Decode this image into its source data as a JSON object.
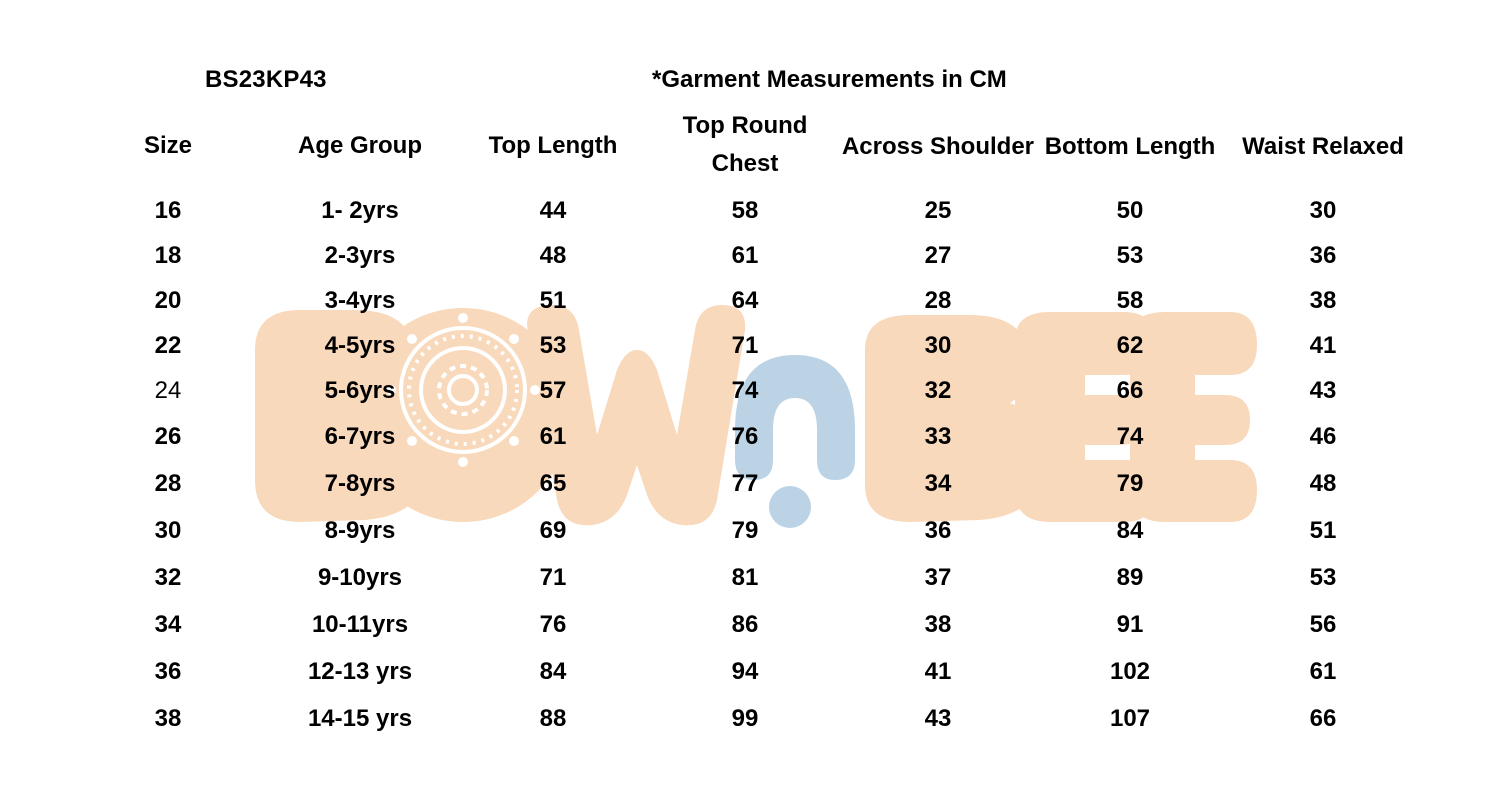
{
  "header": {
    "style_code": "BS23KP43",
    "note": "*Garment Measurements in CM"
  },
  "watermark": {
    "logo_text": "BOWnBEE",
    "colors": {
      "peach": "#F9D9BC",
      "blue": "#BCD3E6"
    }
  },
  "table": {
    "columns": [
      "Size",
      "Age Group",
      "Top Length",
      "Top Round\nChest",
      "Across Shoulder",
      "Bottom Length",
      "Waist Relaxed"
    ],
    "rows": [
      [
        "16",
        "1- 2yrs",
        "44",
        "58",
        "25",
        "50",
        "30"
      ],
      [
        "18",
        "2-3yrs",
        "48",
        "61",
        "27",
        "53",
        "36"
      ],
      [
        "20",
        "3-4yrs",
        "51",
        "64",
        "28",
        "58",
        "38"
      ],
      [
        "22",
        "4-5yrs",
        "53",
        "71",
        "30",
        "62",
        "41"
      ],
      [
        "24",
        "5-6yrs",
        "57",
        "74",
        "32",
        "66",
        "43"
      ],
      [
        "26",
        "6-7yrs",
        "61",
        "76",
        "33",
        "74",
        "46"
      ],
      [
        "28",
        "7-8yrs",
        "65",
        "77",
        "34",
        "79",
        "48"
      ],
      [
        "30",
        "8-9yrs",
        "69",
        "79",
        "36",
        "84",
        "51"
      ],
      [
        "32",
        "9-10yrs",
        "71",
        "81",
        "37",
        "89",
        "53"
      ],
      [
        "34",
        "10-11yrs",
        "76",
        "86",
        "38",
        "91",
        "56"
      ],
      [
        "36",
        "12-13 yrs",
        "84",
        "94",
        "41",
        "102",
        "61"
      ],
      [
        "38",
        "14-15 yrs",
        "88",
        "99",
        "43",
        "107",
        "66"
      ]
    ]
  }
}
